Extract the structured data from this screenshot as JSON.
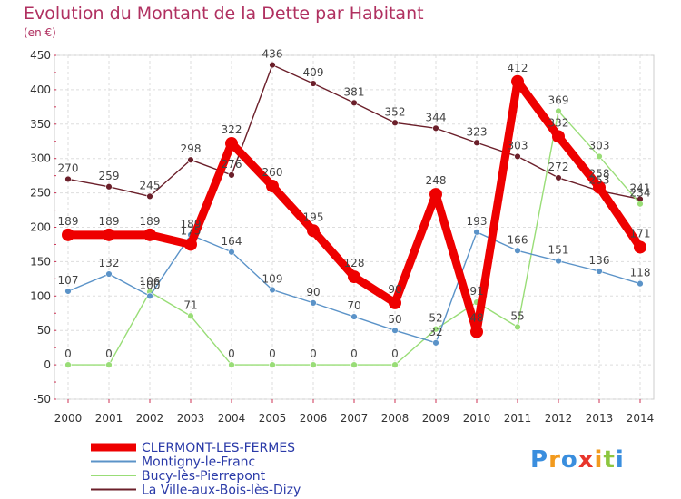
{
  "chart_data": {
    "type": "line",
    "title": "Evolution du Montant de la Dette par Habitant",
    "subtitle": "(en €)",
    "x": [
      "2000",
      "2001",
      "2002",
      "2003",
      "2004",
      "2005",
      "2006",
      "2007",
      "2008",
      "2009",
      "2010",
      "2011",
      "2012",
      "2013",
      "2014"
    ],
    "ylim": [
      -50,
      450
    ],
    "yticks": [
      -50,
      0,
      50,
      100,
      150,
      200,
      250,
      300,
      350,
      400,
      450
    ],
    "grid": true,
    "legend_position": "bottom-left",
    "series": [
      {
        "name": "CLERMONT-LES-FERMES",
        "color": "#ee0000",
        "values": [
          189,
          189,
          189,
          175,
          322,
          260,
          195,
          128,
          90,
          248,
          48,
          412,
          332,
          258,
          171
        ]
      },
      {
        "name": "Montigny-le-Franc",
        "color": "#5b93c8",
        "values": [
          107,
          132,
          100,
          189,
          164,
          109,
          90,
          70,
          50,
          32,
          193,
          166,
          151,
          136,
          118
        ]
      },
      {
        "name": "Bucy-lès-Pierrepont",
        "color": "#99dd77",
        "values": [
          0,
          0,
          106,
          71,
          0,
          0,
          0,
          0,
          0,
          52,
          91,
          55,
          369,
          303,
          234
        ]
      },
      {
        "name": "La Ville-aux-Bois-lès-Dizy",
        "color": "#6b1f2a",
        "values": [
          270,
          259,
          245,
          298,
          276,
          436,
          409,
          381,
          352,
          344,
          323,
          303,
          272,
          253,
          241
        ]
      }
    ]
  },
  "branding": {
    "logo_text": "Proxiti",
    "logo_colors": [
      "#3a8ede",
      "#f29a1e",
      "#3a8ede",
      "#e8352b",
      "#f29a1e",
      "#8dc63f",
      "#3a8ede"
    ]
  }
}
